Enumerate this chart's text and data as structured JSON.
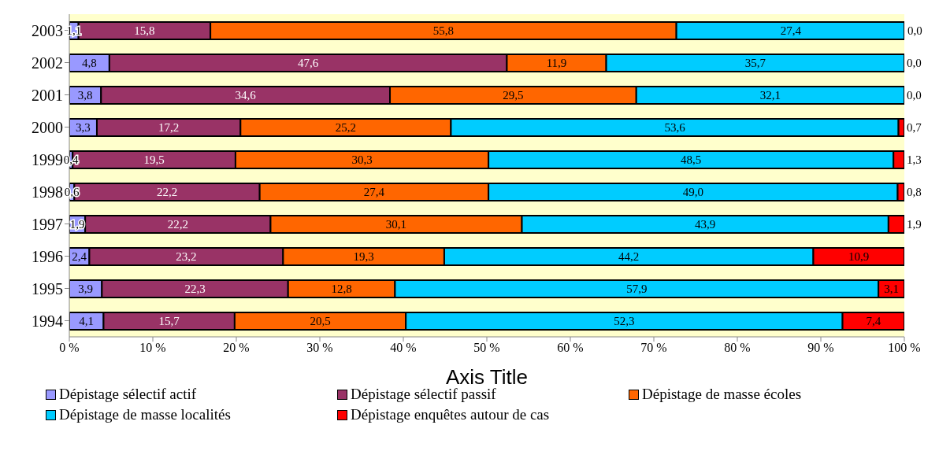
{
  "chart_data": {
    "type": "bar",
    "orientation": "horizontal",
    "stacked": true,
    "xlabel": "Axis Title",
    "categories": [
      "2003",
      "2002",
      "2001",
      "2000",
      "1999",
      "1998",
      "1997",
      "1996",
      "1995",
      "1994"
    ],
    "series": [
      {
        "name": "Dépistage sélectif actif",
        "color": "#9999ff",
        "values": [
          1.1,
          4.8,
          3.8,
          3.3,
          0.4,
          0.6,
          1.9,
          2.4,
          3.9,
          4.1
        ],
        "value_labels": [
          "1,1",
          "4,8",
          "3,8",
          "3,3",
          "0,4",
          "0,6",
          "1,9",
          "2,4",
          "3,9",
          "4,1"
        ]
      },
      {
        "name": "Dépistage sélectif passif",
        "color": "#993366",
        "values": [
          15.8,
          47.6,
          34.6,
          17.2,
          19.5,
          22.2,
          22.2,
          23.2,
          22.3,
          15.7
        ],
        "value_labels": [
          "15,8",
          "47,6",
          "34,6",
          "17,2",
          "19,5",
          "22,2",
          "22,2",
          "23,2",
          "22,3",
          "15,7"
        ]
      },
      {
        "name": "Dépistage de masse écoles",
        "color": "#ff6600",
        "values": [
          55.8,
          11.9,
          29.5,
          25.2,
          30.3,
          27.4,
          30.1,
          19.3,
          12.8,
          20.5
        ],
        "value_labels": [
          "55,8",
          "11,9",
          "29,5",
          "25,2",
          "30,3",
          "27,4",
          "30,1",
          "19,3",
          "12,8",
          "20,5"
        ]
      },
      {
        "name": "Dépistage de masse localités",
        "color": "#00ccff",
        "values": [
          27.4,
          35.7,
          32.1,
          53.6,
          48.5,
          49.0,
          43.9,
          44.2,
          57.9,
          52.3
        ],
        "value_labels": [
          "27,4",
          "35,7",
          "32,1",
          "53,6",
          "48,5",
          "49,0",
          "43,9",
          "44,2",
          "57,9",
          "52,3"
        ]
      },
      {
        "name": "Dépistage enquêtes autour de cas",
        "color": "#ff0000",
        "values": [
          0.0,
          0.0,
          0.0,
          0.7,
          1.3,
          0.8,
          1.9,
          10.9,
          3.1,
          7.4
        ],
        "value_labels": [
          "0,0",
          "0,0",
          "0,0",
          "0,7",
          "1,3",
          "0,8",
          "1,9",
          "10,9",
          "3,1",
          "7,4"
        ]
      }
    ],
    "xlim": [
      0,
      100
    ],
    "xticks": [
      {
        "value": 0,
        "label": "0 %"
      },
      {
        "value": 10,
        "label": "10 %"
      },
      {
        "value": 20,
        "label": "20 %"
      },
      {
        "value": 30,
        "label": "30 %"
      },
      {
        "value": 40,
        "label": "40 %"
      },
      {
        "value": 50,
        "label": "50 %"
      },
      {
        "value": 60,
        "label": "60 %"
      },
      {
        "value": 70,
        "label": "70 %"
      },
      {
        "value": 80,
        "label": "80 %"
      },
      {
        "value": 90,
        "label": "90 %"
      },
      {
        "value": 100,
        "label": "100 %"
      }
    ],
    "grid": false,
    "legend": "bottom"
  }
}
